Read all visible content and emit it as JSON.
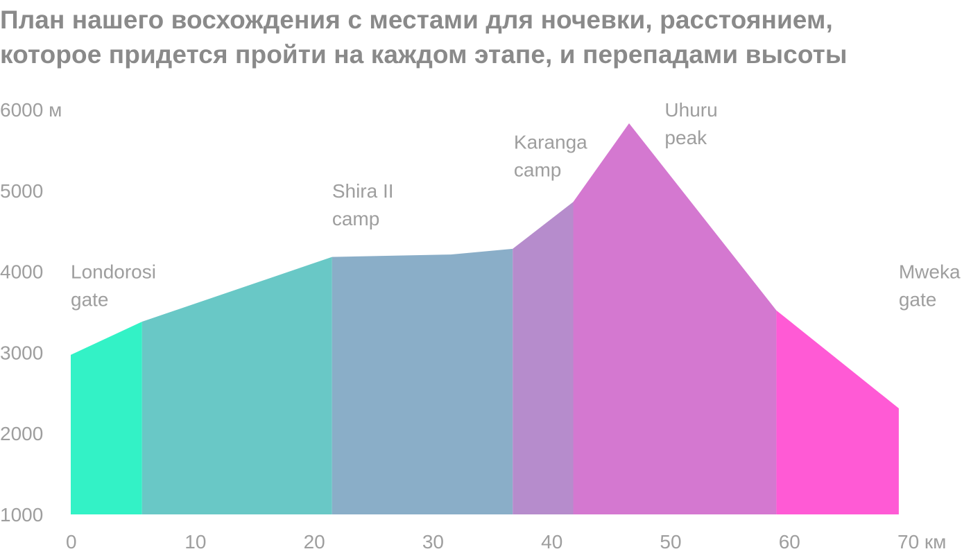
{
  "title_lines": [
    "План нашего восхождения с местами для ночевки, расстоянием,",
    "которое придется пройти на каждом этапе, и перепадами высоты"
  ],
  "chart_data": {
    "type": "area",
    "title": "План нашего восхождения с местами для ночевки, расстоянием, которое придется пройти на каждом этапе, и перепадами высоты",
    "xlabel": "",
    "ylabel": "",
    "xlim": [
      0,
      70
    ],
    "ylim": [
      1000,
      6000
    ],
    "x_ticks": [
      0,
      10,
      20,
      30,
      40,
      50,
      60,
      70
    ],
    "x_tick_labels": [
      "0",
      "10",
      "20",
      "30",
      "40",
      "50",
      "60",
      "70 км"
    ],
    "y_ticks": [
      1000,
      2000,
      3000,
      4000,
      5000,
      6000
    ],
    "y_tick_labels": [
      "1000",
      "2000",
      "3000",
      "4000",
      "5000",
      "6000 м"
    ],
    "grid": false,
    "segments": [
      {
        "color": "#33f2c6",
        "points": [
          [
            0,
            2970
          ],
          [
            6,
            3380
          ]
        ]
      },
      {
        "color": "#69c8c6",
        "points": [
          [
            6,
            3380
          ],
          [
            22,
            4180
          ]
        ]
      },
      {
        "color": "#8aaec8",
        "points": [
          [
            22,
            4180
          ],
          [
            32,
            4210
          ],
          [
            37.2,
            4280
          ]
        ]
      },
      {
        "color": "#b68ccc",
        "points": [
          [
            37.2,
            4280
          ],
          [
            42.3,
            4860
          ]
        ]
      },
      {
        "color": "#d478d0",
        "points": [
          [
            42.3,
            4860
          ],
          [
            47,
            5830
          ],
          [
            59.4,
            3520
          ]
        ]
      },
      {
        "color": "#ff5ad5",
        "points": [
          [
            59.4,
            3520
          ],
          [
            69.7,
            2310
          ]
        ]
      }
    ],
    "annotations": [
      {
        "lines": [
          "Londorosi",
          "gate"
        ],
        "x": 0,
        "y": 4000
      },
      {
        "lines": [
          "Shira II",
          "camp"
        ],
        "x": 22,
        "y": 5000
      },
      {
        "lines": [
          "Karanga",
          "camp"
        ],
        "x": 37.3,
        "y": 5600
      },
      {
        "lines": [
          "Uhuru",
          "peak"
        ],
        "x": 50,
        "y": 6000
      },
      {
        "lines": [
          "Mweka",
          "gate"
        ],
        "x": 69.7,
        "y": 4000
      }
    ]
  }
}
